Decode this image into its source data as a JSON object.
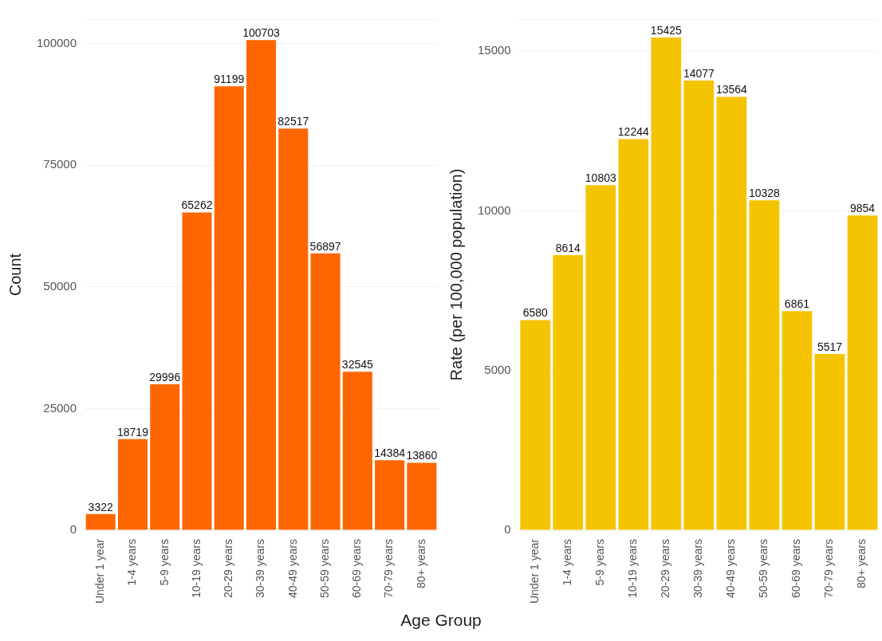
{
  "chart_data": [
    {
      "type": "bar",
      "ylabel": "Count",
      "xlabel": "Age Group",
      "categories": [
        "Under 1 year",
        "1-4 years",
        "5-9 years",
        "10-19 years",
        "20-29 years",
        "30-39 years",
        "40-49 years",
        "50-59 years",
        "60-69 years",
        "70-79 years",
        "80+ years"
      ],
      "values": [
        3322,
        18719,
        29996,
        65262,
        91199,
        100703,
        82517,
        56897,
        32545,
        14384,
        13860
      ],
      "color": "#ff6600",
      "ylim": [
        0,
        105000
      ],
      "yticks": [
        0,
        25000,
        50000,
        75000,
        100000
      ],
      "grid": "y",
      "data_labels": true,
      "legend": false
    },
    {
      "type": "bar",
      "ylabel": "Rate (per 100,000 population)",
      "categories": [
        "Under 1 year",
        "1-4 years",
        "5-9 years",
        "10-19 years",
        "20-29 years",
        "30-39 years",
        "40-49 years",
        "50-59 years",
        "60-69 years",
        "70-79 years",
        "80+ years"
      ],
      "values": [
        6580,
        8614,
        10803,
        12244,
        15425,
        14077,
        13564,
        10328,
        6861,
        5517,
        9854
      ],
      "color": "#f5c400",
      "ylim": [
        0,
        16000
      ],
      "yticks": [
        0,
        5000,
        10000,
        15000
      ],
      "grid": "y",
      "data_labels": true,
      "legend": false
    }
  ]
}
